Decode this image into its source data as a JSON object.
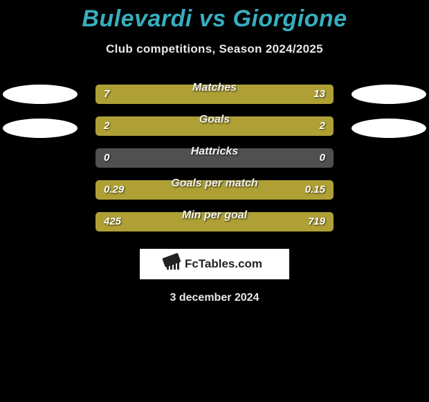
{
  "header": {
    "title": "Bulevardi vs Giorgione",
    "subtitle": "Club competitions, Season 2024/2025",
    "title_color": "#38aebd"
  },
  "layout": {
    "bar_track_width": 344,
    "bar_track_color": "#505050",
    "bar_fill_color": "#aea035",
    "oval_color": "#ffffff",
    "background_color": "#000000"
  },
  "stats": [
    {
      "label": "Matches",
      "left_val": "7",
      "right_val": "13",
      "left_pct": 35,
      "right_pct": 65,
      "show_ovals": true,
      "oval_y_offset": 0
    },
    {
      "label": "Goals",
      "left_val": "2",
      "right_val": "2",
      "left_pct": 50,
      "right_pct": 50,
      "show_ovals": true,
      "oval_y_offset": 6
    },
    {
      "label": "Hattricks",
      "left_val": "0",
      "right_val": "0",
      "left_pct": 0,
      "right_pct": 0,
      "show_ovals": false,
      "oval_y_offset": 0
    },
    {
      "label": "Goals per match",
      "left_val": "0.29",
      "right_val": "0.15",
      "left_pct": 66,
      "right_pct": 34,
      "show_ovals": false,
      "oval_y_offset": 0
    },
    {
      "label": "Min per goal",
      "left_val": "425",
      "right_val": "719",
      "left_pct": 37,
      "right_pct": 63,
      "show_ovals": false,
      "oval_y_offset": 0
    }
  ],
  "footer": {
    "logo_text": "FcTables.com",
    "date": "3 december 2024"
  }
}
